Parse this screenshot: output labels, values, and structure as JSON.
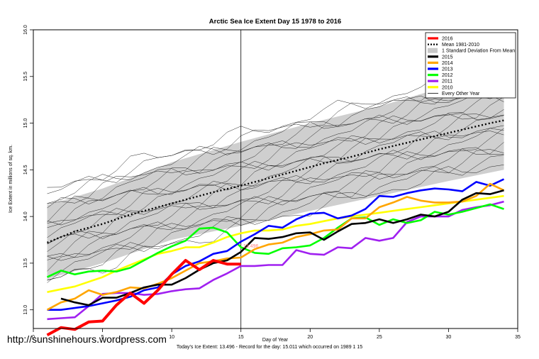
{
  "chart_data": {
    "type": "line",
    "title": "Arctic Sea Ice Extent Day 15 1978 to 2016",
    "xlabel": "Day of Year",
    "ylabel": "Ice Extent in millions of sq. km.",
    "xlim": [
      0,
      35
    ],
    "ylim": [
      12.8,
      16.0
    ],
    "xticks": [
      0,
      5,
      10,
      15,
      20,
      25,
      30,
      35
    ],
    "yticks": [
      13.0,
      13.5,
      14.0,
      14.5,
      15.0,
      15.5,
      16.0
    ],
    "marker_day": 15,
    "mean": {
      "name": "Mean 1981-2010",
      "x": [
        1,
        3,
        5,
        7,
        9,
        11,
        13,
        15,
        17,
        19,
        21,
        23,
        25,
        27,
        29,
        31,
        33,
        34
      ],
      "y": [
        13.72,
        13.84,
        13.92,
        14.02,
        14.1,
        14.18,
        14.26,
        14.33,
        14.41,
        14.49,
        14.57,
        14.64,
        14.72,
        14.79,
        14.86,
        14.93,
        15.0,
        15.03
      ]
    },
    "std_band": {
      "name": "1 Standard Deviation From Mean",
      "x": [
        1,
        5,
        10,
        15,
        20,
        25,
        30,
        34
      ],
      "upper": [
        14.12,
        14.3,
        14.58,
        14.8,
        15.0,
        15.18,
        15.4,
        15.52
      ],
      "lower": [
        13.33,
        13.5,
        13.75,
        13.9,
        14.06,
        14.22,
        14.38,
        14.5
      ]
    },
    "series": [
      {
        "name": "2016",
        "color": "#ff0000",
        "values": [
          12.73,
          12.81,
          12.79,
          12.87,
          12.88,
          13.05,
          13.18,
          13.07,
          13.21,
          13.38,
          13.53,
          13.43,
          13.53,
          13.49,
          13.49
        ]
      },
      {
        "name": "2015",
        "color": "#000000",
        "values": [
          null,
          13.12,
          13.08,
          13.05,
          13.13,
          13.13,
          13.18,
          13.24,
          13.27,
          13.27,
          13.34,
          13.43,
          13.5,
          13.53,
          13.62,
          13.77,
          13.76,
          13.78,
          13.82,
          13.83,
          13.75,
          13.84,
          13.92,
          13.93,
          13.97,
          13.93,
          13.97,
          14.02,
          14.0,
          14.05,
          14.18,
          14.25,
          14.24,
          14.28
        ]
      },
      {
        "name": "2014",
        "color": "#ffa500",
        "values": [
          13.0,
          13.08,
          13.12,
          13.21,
          13.16,
          13.19,
          13.24,
          13.23,
          13.28,
          13.34,
          13.42,
          13.5,
          13.52,
          13.55,
          13.56,
          13.65,
          13.7,
          13.72,
          13.78,
          13.81,
          13.85,
          13.86,
          13.98,
          13.98,
          14.1,
          14.15,
          14.21,
          14.17,
          14.15,
          14.15,
          14.16,
          14.22,
          14.35,
          14.28
        ]
      },
      {
        "name": "2013",
        "color": "#0000ff",
        "values": [
          13.0,
          13.0,
          13.02,
          13.04,
          13.07,
          13.1,
          13.14,
          13.21,
          13.24,
          13.38,
          13.47,
          13.52,
          13.6,
          13.63,
          13.73,
          13.81,
          13.9,
          13.88,
          13.97,
          14.03,
          14.04,
          13.98,
          14.01,
          14.08,
          14.22,
          14.21,
          14.25,
          14.28,
          14.3,
          14.29,
          14.27,
          14.37,
          14.33,
          14.4
        ]
      },
      {
        "name": "2012",
        "color": "#00ff00",
        "values": [
          13.35,
          13.42,
          13.38,
          13.41,
          13.42,
          13.41,
          13.45,
          13.53,
          13.61,
          13.68,
          13.74,
          13.87,
          13.88,
          13.83,
          13.67,
          13.61,
          13.6,
          13.66,
          13.67,
          13.69,
          13.77,
          13.88,
          13.98,
          13.99,
          13.91,
          13.97,
          13.93,
          13.96,
          14.05,
          14.02,
          14.05,
          14.09,
          14.13,
          14.08
        ]
      },
      {
        "name": "2011",
        "color": "#a020f0",
        "values": [
          12.9,
          12.91,
          12.92,
          13.04,
          13.17,
          13.18,
          13.18,
          13.16,
          13.17,
          13.2,
          13.22,
          13.23,
          13.32,
          13.39,
          13.47,
          13.47,
          13.48,
          13.48,
          13.64,
          13.6,
          13.59,
          13.67,
          13.66,
          13.77,
          13.74,
          13.77,
          13.94,
          14.0,
          14.0,
          14.0,
          14.07,
          14.1,
          14.12,
          14.16
        ]
      },
      {
        "name": "2010",
        "color": "#ffff00",
        "values": [
          13.19,
          13.22,
          13.25,
          13.3,
          13.35,
          13.42,
          13.48,
          13.54,
          13.6,
          13.63,
          13.67,
          13.67,
          13.72,
          13.78,
          13.82,
          13.85,
          13.85,
          13.86,
          13.9,
          13.92,
          13.95,
          13.98,
          14.0,
          14.02,
          14.04,
          14.06,
          14.08,
          14.1,
          14.12,
          14.14,
          14.16,
          14.18,
          14.2,
          14.22
        ]
      }
    ],
    "legend": [
      {
        "label": "2016",
        "color": "#ff0000",
        "style": "thick"
      },
      {
        "label": "Mean 1981-2010",
        "color": "#000000",
        "style": "dotted"
      },
      {
        "label": "1 Standard Deviation From Mean",
        "color": "#c8c8c8",
        "style": "box"
      },
      {
        "label": "2015",
        "color": "#000000",
        "style": "thick"
      },
      {
        "label": "2014",
        "color": "#ffa500",
        "style": "thick"
      },
      {
        "label": "2013",
        "color": "#0000ff",
        "style": "thick"
      },
      {
        "label": "2012",
        "color": "#00ff00",
        "style": "thick"
      },
      {
        "label": "2011",
        "color": "#a020f0",
        "style": "thick"
      },
      {
        "label": "2010",
        "color": "#ffff00",
        "style": "thick"
      },
      {
        "label": "Every Other Year",
        "color": "#000000",
        "style": "thin"
      }
    ],
    "annotation": "13.496"
  },
  "watermark": "http://sunshinehours.wordpress.com",
  "footer": "Today's Ice Extent: 13.496  - Record for the day: 15.011 which occurred on 1989 1 15"
}
